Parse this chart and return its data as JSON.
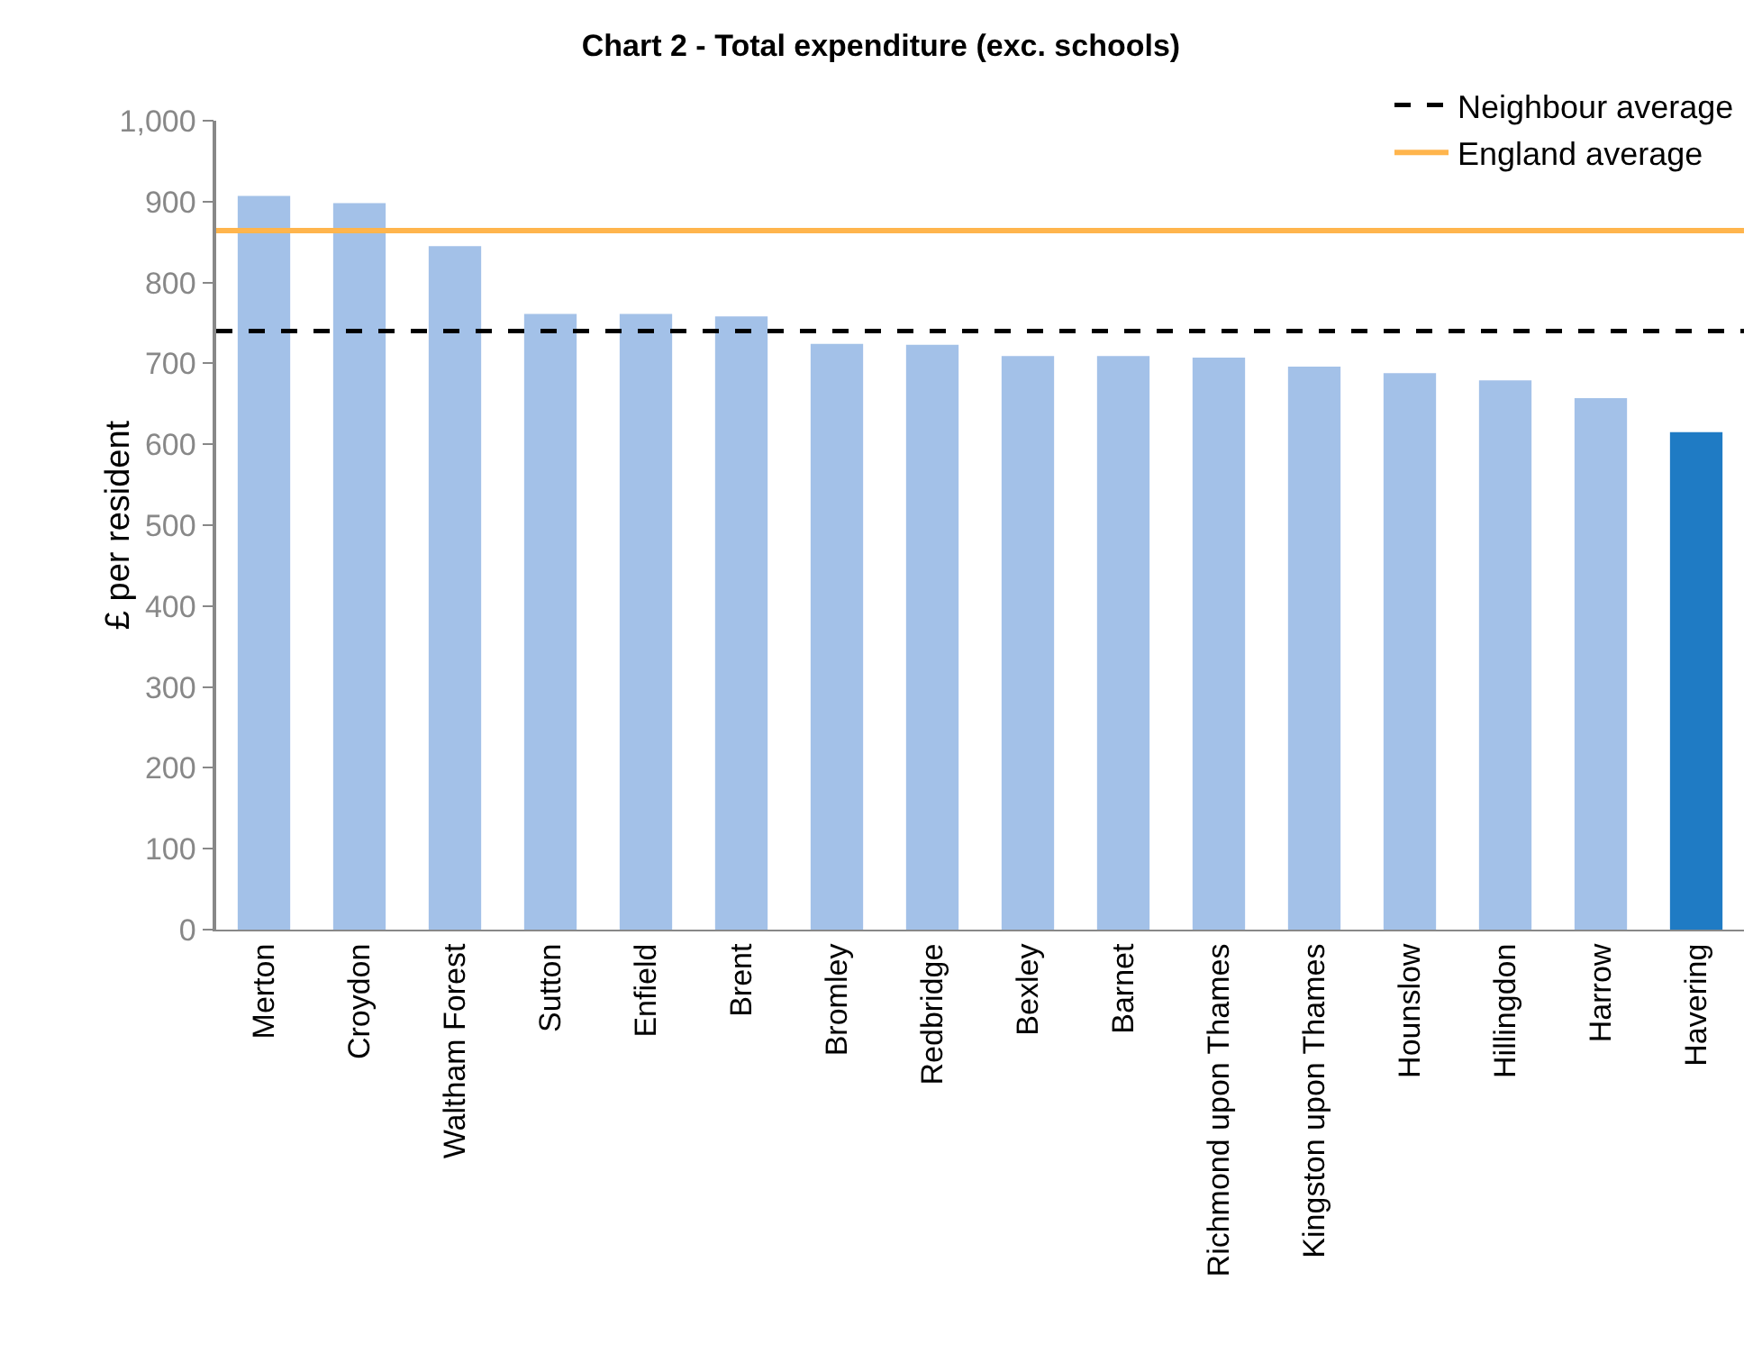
{
  "chart_data": {
    "type": "bar",
    "title": "Chart 2 - Total expenditure (exc. schools)",
    "ylabel": "£ per resident",
    "categories": [
      "Merton",
      "Croydon",
      "Waltham Forest",
      "Sutton",
      "Enfield",
      "Brent",
      "Bromley",
      "Redbridge",
      "Bexley",
      "Barnet",
      "Richmond upon Thames",
      "Kingston upon Thames",
      "Hounslow",
      "Hillingdon",
      "Harrow",
      "Havering"
    ],
    "values": [
      907,
      898,
      845,
      761,
      761,
      758,
      724,
      723,
      709,
      709,
      707,
      696,
      688,
      679,
      657,
      615
    ],
    "colors": [
      "#a3c1e8",
      "#a3c1e8",
      "#a3c1e8",
      "#a3c1e8",
      "#a3c1e8",
      "#a3c1e8",
      "#a3c1e8",
      "#a3c1e8",
      "#a3c1e8",
      "#a3c1e8",
      "#a3c1e8",
      "#a3c1e8",
      "#a3c1e8",
      "#a3c1e8",
      "#a3c1e8",
      "#1f7bc4"
    ],
    "ylim": [
      0,
      1000
    ],
    "yticks": [
      0,
      100,
      200,
      300,
      400,
      500,
      600,
      700,
      800,
      900,
      {
        "value": 1000,
        "label": "1,000"
      }
    ],
    "ref_lines": [
      {
        "axis": "y",
        "value": 740,
        "label": "Neighbour average",
        "color": "#000000",
        "line_style": "dashed"
      },
      {
        "axis": "y",
        "value": 864,
        "label": "England average",
        "color": "#ffb54d",
        "line_style": "solid"
      }
    ],
    "grid": false,
    "legend": "top right"
  }
}
